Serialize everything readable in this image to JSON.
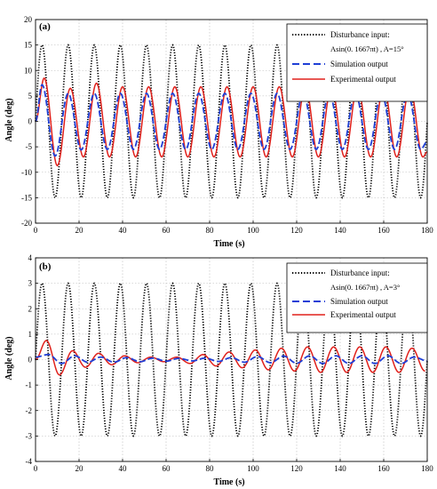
{
  "chart_data": [
    {
      "type": "line",
      "panel": "(a)",
      "xlabel": "Time (s)",
      "ylabel": "Angle (deg)",
      "xlim": [
        0,
        180
      ],
      "ylim": [
        -20,
        20
      ],
      "xticks": [
        "0",
        "20",
        "40",
        "60",
        "80",
        "100",
        "120",
        "140",
        "160",
        "180"
      ],
      "yticks": [
        "20",
        "15",
        "10",
        "5",
        "0",
        "-5",
        "-10",
        "-15",
        "-20"
      ],
      "grid": true,
      "legend_position": "top-right",
      "legend_line1": "Disturbance input:",
      "legend_line2": "Asin(0. 1667πt) , A=15°",
      "series": [
        {
          "name": "Disturbance input: Asin(0. 1667πt) , A=15°",
          "style": "dotted",
          "color": "#000000",
          "amplitude": 15,
          "period": 12,
          "description": "15 sin(0.1667 π t)"
        },
        {
          "name": "Simulation output",
          "style": "dashed",
          "color": "#1f3fd6",
          "x": [
            0,
            3,
            9,
            15,
            21,
            27,
            33,
            39,
            45,
            51,
            57,
            63,
            69,
            75,
            81,
            87,
            93,
            99,
            105,
            111,
            117,
            123,
            129,
            135,
            141,
            147,
            153,
            159,
            165,
            171,
            177,
            180
          ],
          "y": [
            0,
            7.2,
            -6.8,
            5.5,
            -5.6,
            5.5,
            -5.5,
            5.5,
            -5.5,
            5.5,
            -5.5,
            5.5,
            -5.5,
            5.5,
            -5.5,
            5.5,
            -5.5,
            5.5,
            -5.5,
            5.5,
            -5.5,
            5.5,
            -5.5,
            5.5,
            -5.5,
            5.5,
            -5.5,
            5.5,
            -5.5,
            5.5,
            -5.5,
            -4
          ]
        },
        {
          "name": "Experimental output",
          "style": "solid",
          "color": "#e0201b",
          "x": [
            0,
            4,
            10,
            16,
            22,
            28,
            34,
            40,
            46,
            52,
            58,
            64,
            70,
            76,
            82,
            88,
            94,
            100,
            106,
            112,
            118,
            124,
            130,
            136,
            142,
            148,
            154,
            160,
            166,
            172,
            178,
            180
          ],
          "y": [
            0,
            8.5,
            -8.7,
            6.5,
            -7.0,
            7.5,
            -7.0,
            6.8,
            -7.0,
            6.8,
            -7.0,
            6.8,
            -7.0,
            6.8,
            -7.0,
            6.8,
            -7.0,
            6.8,
            -7.0,
            6.8,
            -7.0,
            6.8,
            -7.0,
            6.8,
            -7.0,
            6.8,
            -7.0,
            6.8,
            -7.0,
            6.8,
            -7.0,
            -6
          ]
        }
      ]
    },
    {
      "type": "line",
      "panel": "(b)",
      "xlabel": "Time (s)",
      "ylabel": "Angle (deg)",
      "xlim": [
        0,
        180
      ],
      "ylim": [
        -4,
        4
      ],
      "xticks": [
        "0",
        "20",
        "40",
        "60",
        "80",
        "100",
        "120",
        "140",
        "160",
        "180"
      ],
      "yticks": [
        "4",
        "3",
        "2",
        "1",
        "0",
        "-1",
        "-2",
        "-3",
        "-4"
      ],
      "grid": true,
      "legend_position": "top-right",
      "legend_line1": "Disturbance input:",
      "legend_line2": "Asin(0. 1667πt) , A=3°",
      "series": [
        {
          "name": "Disturbance input: Asin(0. 1667πt) , A=3°",
          "style": "dotted",
          "color": "#000000",
          "amplitude": 3,
          "period": 12,
          "description": "3 sin(0.1667 π t)"
        },
        {
          "name": "Simulation output",
          "style": "dashed",
          "color": "#1f3fd6",
          "x": [
            0,
            6,
            12,
            18,
            24,
            30,
            36,
            42,
            48,
            54,
            60,
            66,
            72,
            78,
            84,
            90,
            96,
            102,
            108,
            114,
            120,
            126,
            132,
            138,
            144,
            150,
            156,
            162,
            168,
            174,
            180
          ],
          "y": [
            0.1,
            0.2,
            -0.15,
            0.15,
            -0.1,
            0.1,
            -0.1,
            0.08,
            -0.08,
            0.06,
            -0.06,
            0.05,
            -0.05,
            0.06,
            -0.07,
            0.08,
            -0.1,
            0.12,
            -0.12,
            0.14,
            -0.14,
            0.15,
            -0.15,
            0.15,
            -0.15,
            0.15,
            -0.15,
            0.15,
            -0.15,
            0.1,
            -0.05
          ]
        },
        {
          "name": "Experimental output",
          "style": "solid",
          "color": "#e0201b",
          "x": [
            0,
            5,
            11,
            17,
            23,
            29,
            35,
            41,
            47,
            53,
            59,
            65,
            71,
            77,
            83,
            89,
            95,
            101,
            107,
            113,
            119,
            125,
            131,
            137,
            143,
            149,
            155,
            161,
            167,
            173,
            179
          ],
          "y": [
            0,
            0.75,
            -0.6,
            0.35,
            -0.3,
            0.25,
            -0.2,
            0.15,
            -0.12,
            0.1,
            -0.08,
            0.1,
            -0.15,
            0.2,
            -0.25,
            0.3,
            -0.32,
            0.38,
            -0.4,
            0.45,
            -0.45,
            0.5,
            -0.5,
            0.5,
            -0.5,
            0.5,
            -0.5,
            0.5,
            -0.5,
            0.45,
            -0.45
          ]
        }
      ]
    }
  ]
}
